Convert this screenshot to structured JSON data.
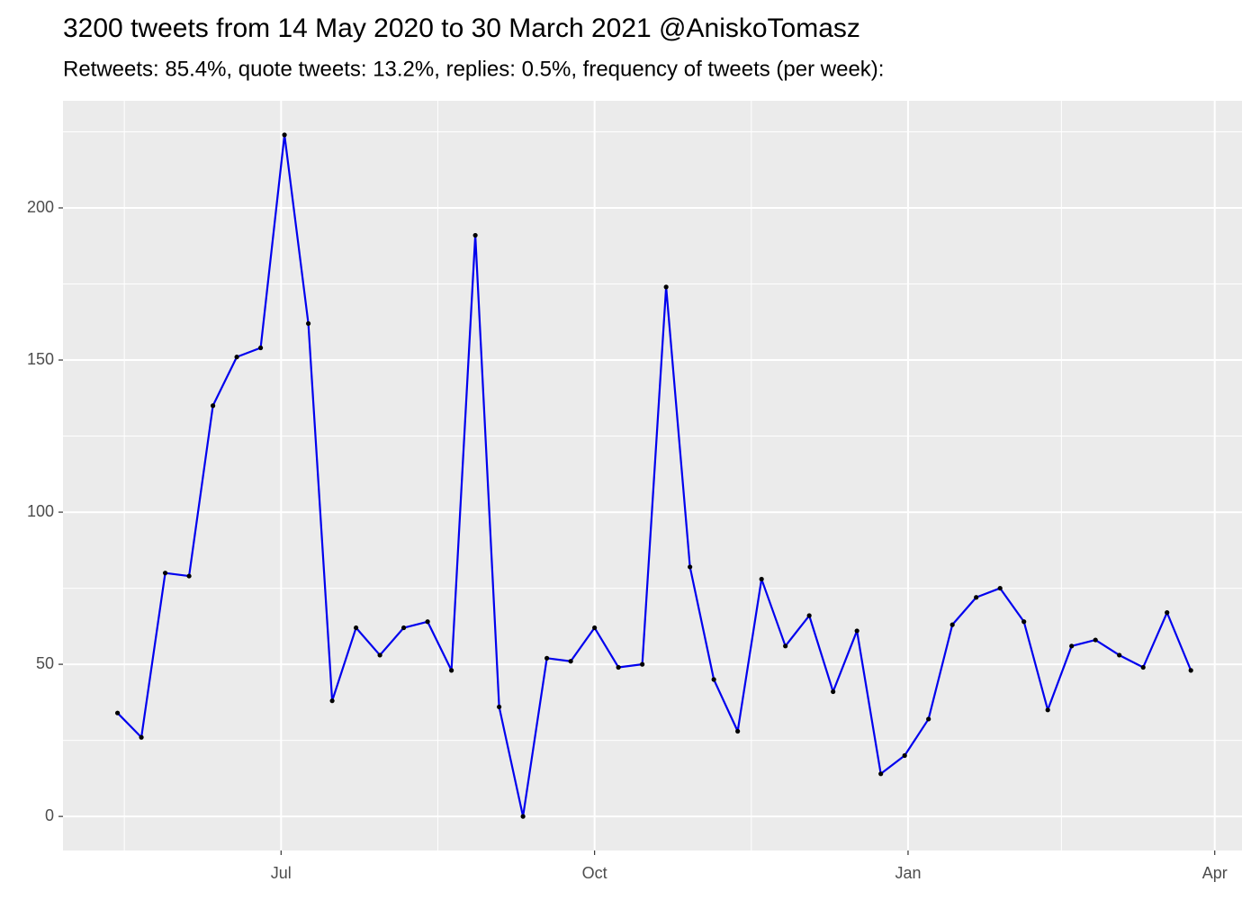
{
  "chart_data": {
    "type": "line",
    "title": "3200 tweets from 14 May 2020 to 30 March 2021 @AniskoTomasz",
    "subtitle": "Retweets: 85.4%, quote tweets: 13.2%, replies: 0.5%, frequency of tweets (per week):",
    "x": [
      "2020-05-14",
      "2020-05-21",
      "2020-05-28",
      "2020-06-04",
      "2020-06-11",
      "2020-06-18",
      "2020-06-25",
      "2020-07-02",
      "2020-07-09",
      "2020-07-16",
      "2020-07-23",
      "2020-07-30",
      "2020-08-06",
      "2020-08-13",
      "2020-08-20",
      "2020-08-27",
      "2020-09-03",
      "2020-09-10",
      "2020-09-17",
      "2020-09-24",
      "2020-10-01",
      "2020-10-08",
      "2020-10-15",
      "2020-10-22",
      "2020-10-29",
      "2020-11-05",
      "2020-11-12",
      "2020-11-19",
      "2020-11-26",
      "2020-12-03",
      "2020-12-10",
      "2020-12-17",
      "2020-12-24",
      "2020-12-31",
      "2021-01-07",
      "2021-01-14",
      "2021-01-21",
      "2021-01-28",
      "2021-02-04",
      "2021-02-11",
      "2021-02-18",
      "2021-02-25",
      "2021-03-04",
      "2021-03-11",
      "2021-03-18",
      "2021-03-25"
    ],
    "values": [
      34,
      26,
      80,
      79,
      135,
      151,
      154,
      224,
      162,
      38,
      62,
      53,
      62,
      64,
      48,
      191,
      36,
      0,
      52,
      51,
      62,
      49,
      50,
      174,
      82,
      45,
      28,
      78,
      56,
      66,
      41,
      61,
      14,
      20,
      32,
      63,
      72,
      75,
      64,
      35,
      56,
      58,
      53,
      49,
      67,
      48
    ],
    "color": "#0000ee",
    "point_color": "#000000",
    "xlim": [
      "2020-04-28",
      "2021-04-09"
    ],
    "xticks": [
      {
        "value": "2020-07-01",
        "label": "Jul"
      },
      {
        "value": "2020-10-01",
        "label": "Oct"
      },
      {
        "value": "2021-01-01",
        "label": "Jan"
      },
      {
        "value": "2021-04-01",
        "label": "Apr"
      }
    ],
    "ylim": [
      -11.2,
      235.2
    ],
    "yticks": [
      0,
      50,
      100,
      150,
      200
    ],
    "grid": true,
    "minor_grid": true
  }
}
